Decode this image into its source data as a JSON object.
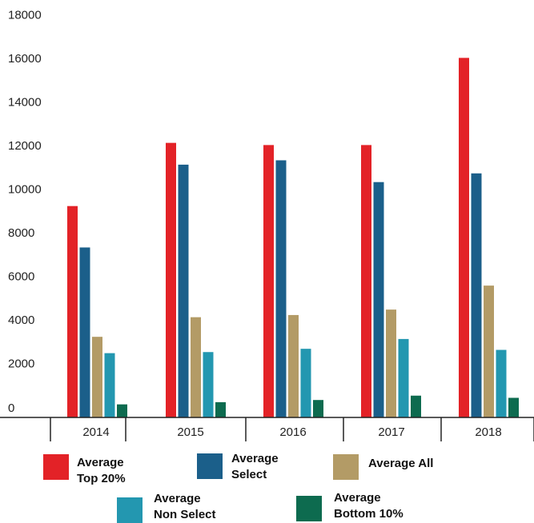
{
  "chart_data": {
    "type": "bar",
    "title": "",
    "xlabel": "",
    "ylabel": "",
    "ylim": [
      0,
      18000
    ],
    "yticks": [
      0,
      2000,
      4000,
      6000,
      8000,
      10000,
      12000,
      14000,
      16000,
      18000
    ],
    "grid": false,
    "legend_position": "bottom",
    "categories": [
      "2014",
      "2015",
      "2016",
      "2017",
      "2018"
    ],
    "series": [
      {
        "name": "Average Top 20%",
        "legend_lines": [
          "Average",
          "Top 20%"
        ],
        "color": "#e32227",
        "values": [
          9700,
          12600,
          12500,
          12500,
          16500
        ]
      },
      {
        "name": "Average Select",
        "legend_lines": [
          "Average",
          "Select"
        ],
        "color": "#1b5f8a",
        "values": [
          7800,
          11600,
          11800,
          10800,
          11200
        ]
      },
      {
        "name": "Average All",
        "legend_lines": [
          "Average All"
        ],
        "color": "#b39b66",
        "values": [
          3700,
          4600,
          4700,
          4950,
          6050
        ]
      },
      {
        "name": "Average Non Select",
        "legend_lines": [
          "Average",
          "Non Select"
        ],
        "color": "#2397b0",
        "values": [
          2950,
          3000,
          3150,
          3600,
          3100
        ]
      },
      {
        "name": "Average Bottom 10%",
        "legend_lines": [
          "Average",
          "Bottom 10%"
        ],
        "color": "#0d6b4f",
        "values": [
          600,
          700,
          800,
          1000,
          900
        ]
      }
    ]
  }
}
